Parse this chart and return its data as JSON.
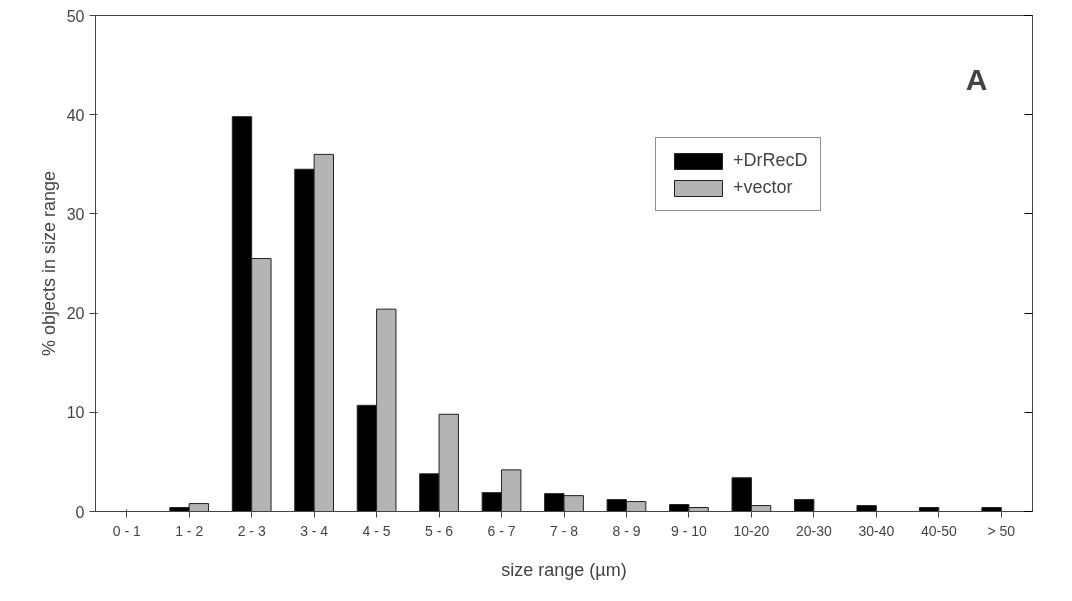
{
  "chart_data": {
    "type": "bar",
    "xlabel": "size range (µm)",
    "ylabel": "% objects in size range",
    "categories": [
      "0 - 1",
      "1 - 2",
      "2 - 3",
      "3 - 4",
      "4 - 5",
      "5 - 6",
      "6 - 7",
      "7 - 8",
      "8 - 9",
      "9 - 10",
      "10-20",
      "20-30",
      "30-40",
      "40-50",
      "> 50"
    ],
    "series": [
      {
        "name": "+DrRecD",
        "color": "#000000",
        "values": [
          null,
          0.4,
          39.8,
          34.5,
          10.7,
          3.8,
          1.9,
          1.8,
          1.2,
          0.7,
          3.4,
          1.2,
          0.6,
          0.4,
          0.4
        ]
      },
      {
        "name": "+vector",
        "color": "#b4b4b4",
        "values": [
          null,
          0.8,
          25.5,
          36.0,
          20.4,
          9.8,
          4.2,
          1.6,
          1.0,
          0.4,
          0.6,
          null,
          null,
          null,
          null
        ]
      }
    ],
    "ylim": [
      0,
      50
    ],
    "yticks": [
      0,
      10,
      20,
      30,
      40,
      50
    ],
    "grid": false,
    "legend": "top",
    "annotations": [
      "A"
    ]
  }
}
